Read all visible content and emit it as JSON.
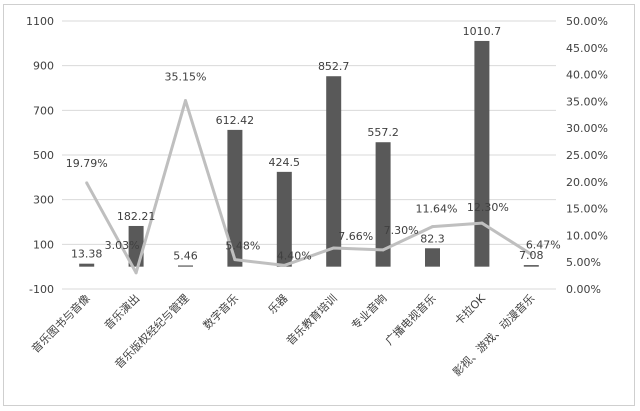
{
  "chart_data": {
    "type": "bar",
    "combo": "bar+line (secondary axis)",
    "title": "",
    "categories": [
      "音乐图书与音像",
      "音乐演出",
      "音乐版权经纪与管理",
      "数字音乐",
      "乐器",
      "音乐教育培训",
      "专业音响",
      "广播电视音乐",
      "卡拉OK",
      "影视、游戏、动漫音乐"
    ],
    "series": [
      {
        "type": "bar",
        "axis": "primary",
        "values": [
          13.38,
          182.21,
          5.46,
          612.42,
          424.5,
          852.7,
          557.2,
          82.3,
          1010.7,
          7.08
        ],
        "labels": [
          "13.38",
          "182.21",
          "5.46",
          "612.42",
          "424.5",
          "852.7",
          "557.2",
          "82.3",
          "1010.7",
          "7.08"
        ]
      },
      {
        "type": "line",
        "axis": "secondary",
        "values": [
          19.79,
          3.03,
          35.15,
          5.48,
          4.4,
          7.66,
          7.3,
          11.64,
          12.3,
          6.47
        ],
        "labels": [
          "19.79%",
          "3.03%",
          "35.15%",
          "5.48%",
          "4.40%",
          "7.66%",
          "7.30%",
          "11.64%",
          "12.30%",
          "6.47%"
        ]
      }
    ],
    "y_left": {
      "ticks": [
        "1100",
        "900",
        "700",
        "500",
        "300",
        "100",
        "-100"
      ],
      "ylim": [
        -100,
        1100
      ]
    },
    "y_right": {
      "ticks": [
        "50.00%",
        "45.00%",
        "40.00%",
        "35.00%",
        "30.00%",
        "25.00%",
        "20.00%",
        "15.00%",
        "10.00%",
        "5.00%",
        "0.00%"
      ],
      "ylim": [
        0,
        50
      ]
    },
    "grid": "horizontal",
    "legend": "none",
    "colors": {
      "bar": "#595959",
      "line": "#bfbfbf",
      "grid": "#d9d9d9",
      "text": "#404040"
    }
  }
}
